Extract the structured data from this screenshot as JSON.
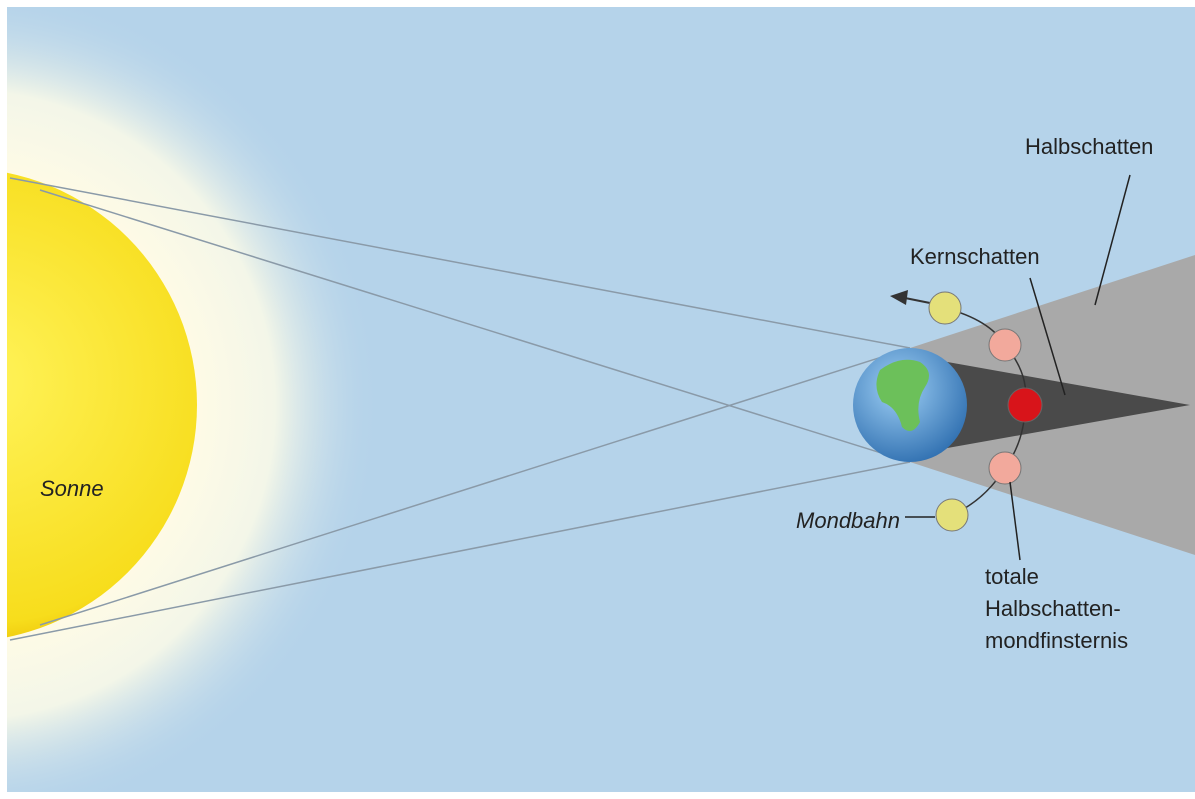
{
  "labels": {
    "sun": "Sonne",
    "penumbra": "Halbschatten",
    "umbra": "Kernschatten",
    "orbit": "Mondbahn",
    "eclipse": [
      "totale",
      "Halbschatten-",
      "mondfinsternis"
    ]
  }
}
